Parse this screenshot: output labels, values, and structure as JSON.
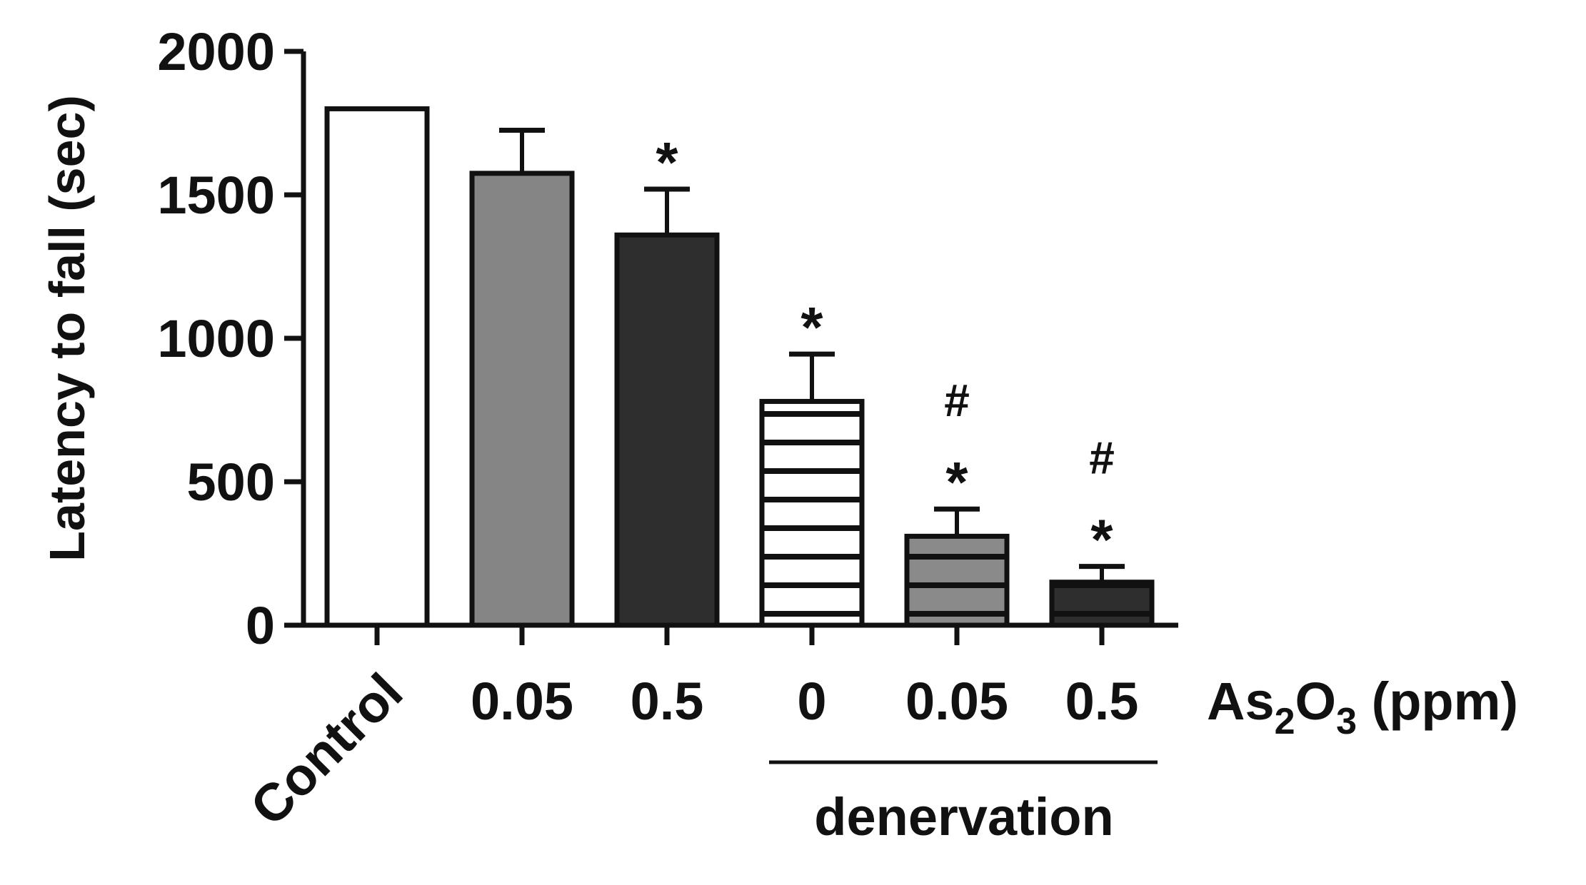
{
  "chart_data": {
    "type": "bar",
    "ylabel": "Latency to fall (sec)",
    "ylim": [
      0,
      2000
    ],
    "yticks": [
      0,
      500,
      1000,
      1500,
      2000
    ],
    "ytick_labels": [
      "0",
      "500",
      "1000",
      "1500",
      "2000"
    ],
    "categories": [
      "Control",
      "0.05",
      "0.5",
      "0",
      "0.05",
      "0.5"
    ],
    "values": [
      1800,
      1575,
      1360,
      780,
      310,
      150
    ],
    "errors": [
      0,
      150,
      160,
      165,
      95,
      55
    ],
    "fill_colors": [
      "#ffffff",
      "#858585",
      "#2e2e2e",
      "#ffffff",
      "#8a8a8a",
      "#2e2e2e"
    ],
    "stripe_colors": [
      "",
      "",
      "",
      "#111111",
      "#111111",
      "#111111"
    ],
    "significance": [
      {
        "index": 2,
        "marks": [
          "*"
        ]
      },
      {
        "index": 3,
        "marks": [
          "*"
        ]
      },
      {
        "index": 4,
        "marks": [
          "#",
          "*"
        ]
      },
      {
        "index": 5,
        "marks": [
          "#",
          "*"
        ]
      }
    ],
    "group_label": "denervation",
    "group_indices": [
      3,
      5
    ],
    "unit_label_prefix": "As",
    "unit_label_sub1": "2",
    "unit_label_mid": "O",
    "unit_label_sub2": "3",
    "unit_label_suffix": " (ppm)"
  }
}
